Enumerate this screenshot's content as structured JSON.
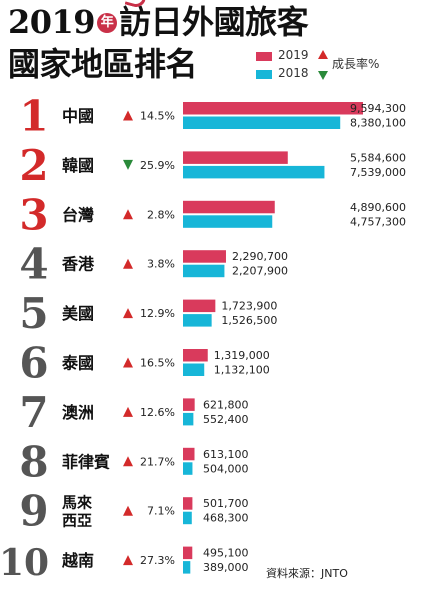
{
  "title": {
    "year": "2019",
    "year_mark": "年",
    "line1_rest": "訪日外國旅客",
    "line2": "國家地區排名"
  },
  "legend": {
    "series_2019": "2019",
    "series_2018": "2018",
    "growth_label": "成長率%"
  },
  "colors": {
    "bar_2019": "#d93a5c",
    "bar_2018": "#17b6d8",
    "rank": "#d32a2a",
    "up": "#d32a2a",
    "down": "#2a8a3a"
  },
  "source": "資料來源：JNTO",
  "chart_data": {
    "type": "bar",
    "orientation": "horizontal",
    "categories": [
      "中國",
      "韓國",
      "台灣",
      "香港",
      "美國",
      "泰國",
      "澳洲",
      "菲律賓",
      "馬來西亞",
      "越南"
    ],
    "category_lines": [
      [
        "中國"
      ],
      [
        "韓國"
      ],
      [
        "台灣"
      ],
      [
        "香港"
      ],
      [
        "美國"
      ],
      [
        "泰國"
      ],
      [
        "澳洲"
      ],
      [
        "菲律賓"
      ],
      [
        "馬來",
        "西亞"
      ],
      [
        "越南"
      ]
    ],
    "ranks": [
      "1",
      "2",
      "3",
      "4",
      "5",
      "6",
      "7",
      "8",
      "9",
      "10"
    ],
    "series": [
      {
        "name": "2019",
        "values": [
          9594300,
          5584600,
          4890600,
          2290700,
          1723900,
          1319000,
          621800,
          613100,
          501700,
          495100
        ],
        "labels": [
          "9,594,300",
          "5,584,600",
          "4,890,600",
          "2,290,700",
          "1,723,900",
          "1,319,000",
          "621,800",
          "613,100",
          "501,700",
          "495,100"
        ]
      },
      {
        "name": "2018",
        "values": [
          8380100,
          7539000,
          4757300,
          2207900,
          1526500,
          1132100,
          552400,
          504000,
          468300,
          389000
        ],
        "labels": [
          "8,380,100",
          "7,539,000",
          "4,757,300",
          "2,207,900",
          "1,526,500",
          "1,132,100",
          "552,400",
          "504,000",
          "468,300",
          "389,000"
        ]
      }
    ],
    "growth": [
      {
        "dir": "up",
        "value": "14.5%"
      },
      {
        "dir": "down",
        "value": "25.9%"
      },
      {
        "dir": "up",
        "value": "2.8%"
      },
      {
        "dir": "up",
        "value": "3.8%"
      },
      {
        "dir": "up",
        "value": "12.9%"
      },
      {
        "dir": "up",
        "value": "16.5%"
      },
      {
        "dir": "up",
        "value": "12.6%"
      },
      {
        "dir": "up",
        "value": "21.7%"
      },
      {
        "dir": "up",
        "value": "7.1%"
      },
      {
        "dir": "up",
        "value": "27.3%"
      }
    ],
    "xlim": [
      0,
      9594300
    ],
    "grid": false,
    "legend_position": "top-right"
  }
}
